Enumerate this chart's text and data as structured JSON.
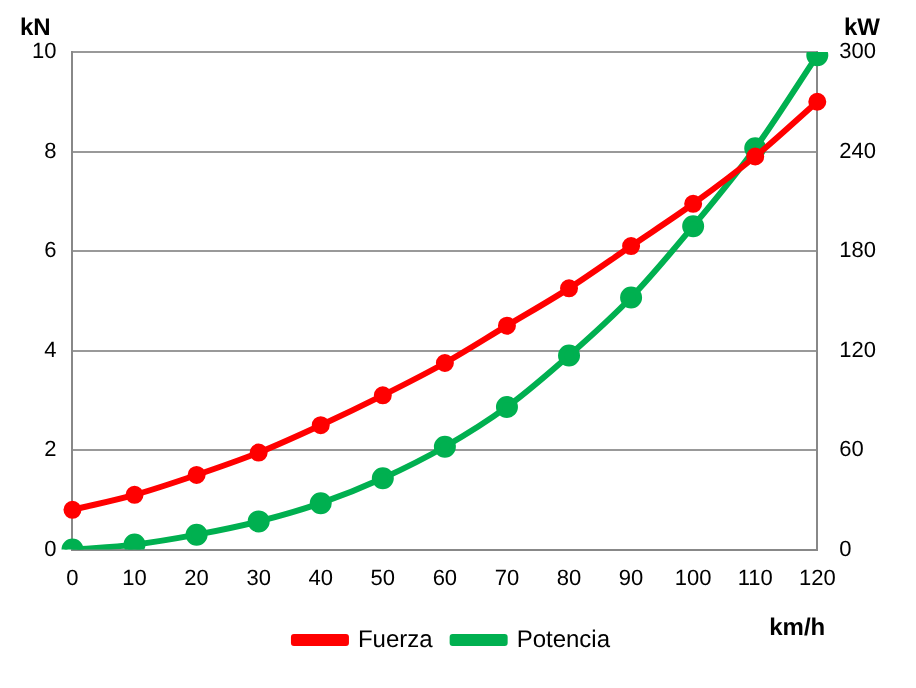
{
  "chart_data": {
    "type": "line",
    "xlabel": "km/h",
    "ylabel": "kN",
    "y2label": "kW",
    "categories": [
      "0",
      "10",
      "20",
      "30",
      "40",
      "50",
      "60",
      "70",
      "80",
      "90",
      "100",
      "110",
      "120"
    ],
    "series": [
      {
        "name": "Fuerza",
        "color": "#ff0000",
        "values": [
          0.8,
          1.1,
          1.5,
          1.95,
          2.5,
          3.1,
          3.75,
          4.5,
          5.25,
          6.1,
          6.95,
          7.9,
          9.0
        ]
      },
      {
        "name": "Potencia",
        "color": "#00b050",
        "axis": "y2",
        "values": [
          0,
          3,
          9,
          17,
          28,
          43,
          62,
          86,
          117,
          152,
          195,
          242,
          298
        ]
      }
    ],
    "ylim": [
      0,
      10
    ],
    "yticks": [
      0,
      2,
      4,
      6,
      8,
      10
    ],
    "y2lim": [
      0,
      300
    ],
    "y2ticks": [
      0,
      60,
      120,
      180,
      240,
      300
    ],
    "grid": "y",
    "legend": "bottom",
    "marker": "circle",
    "line_style": "solid"
  }
}
